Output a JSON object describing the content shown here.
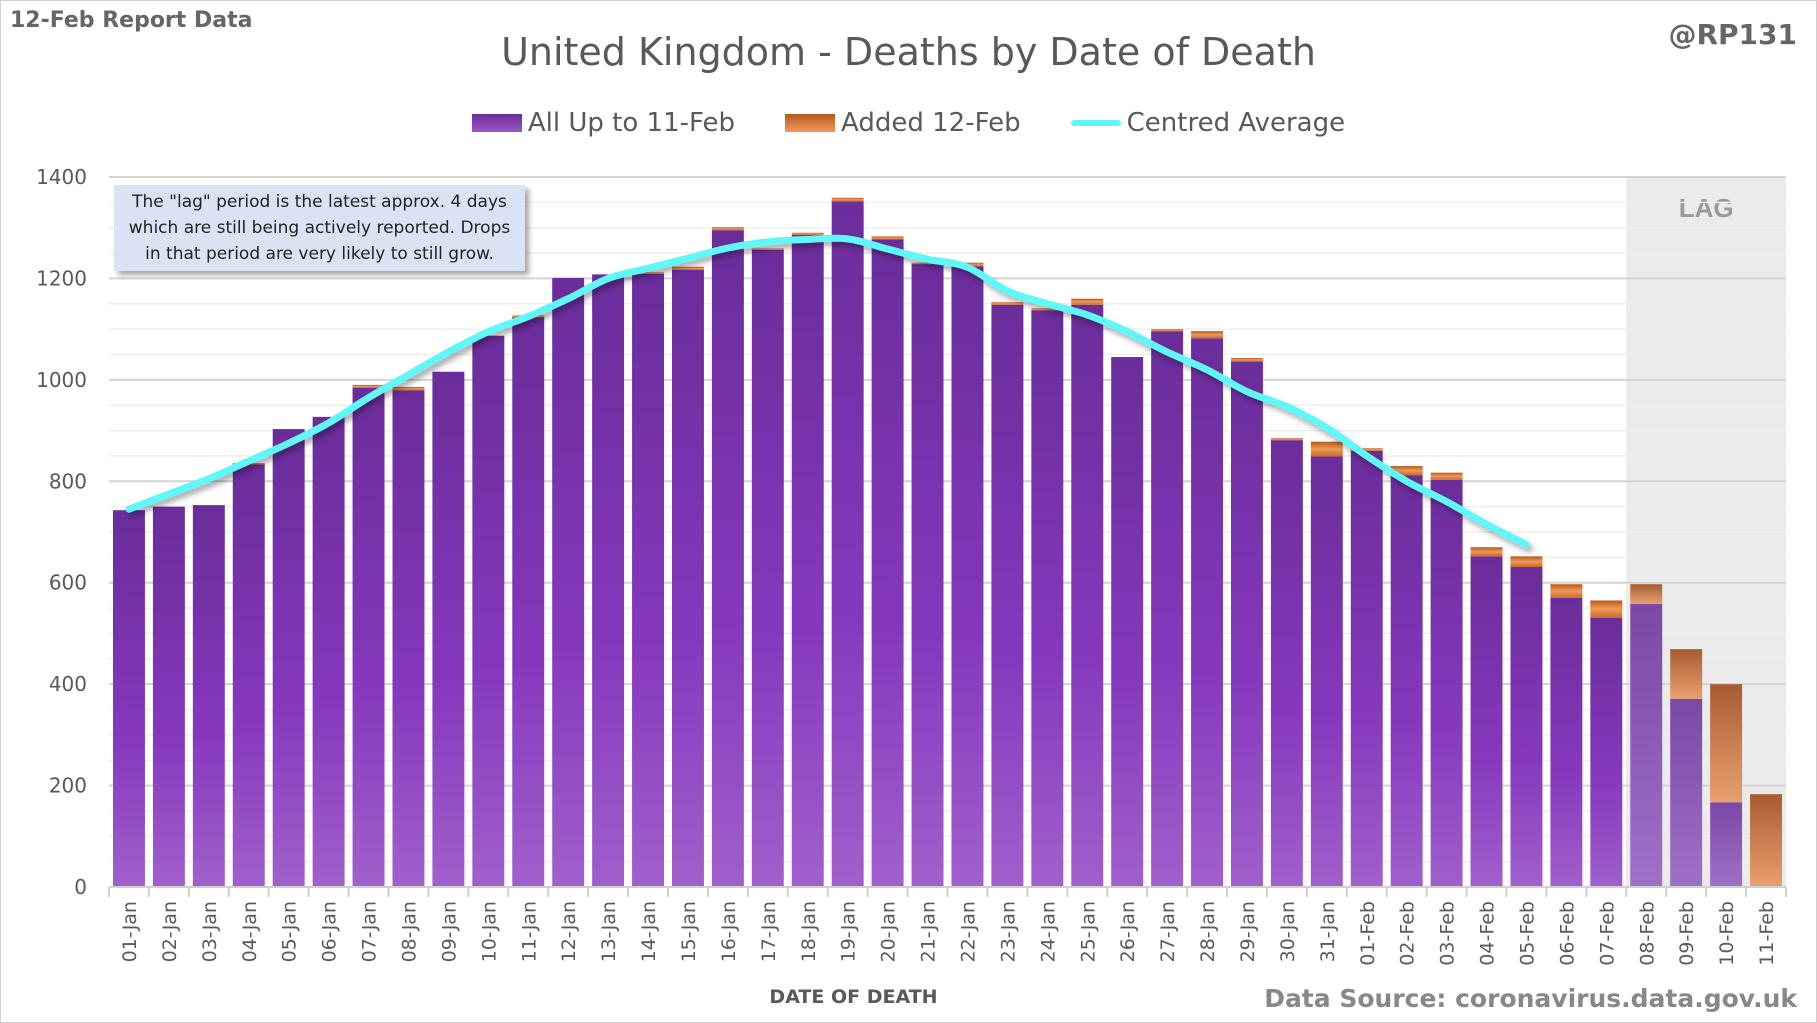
{
  "header": {
    "report_label": "12-Feb Report Data",
    "handle": "@RP131"
  },
  "footer": {
    "source": "Data Source: coronavirus.data.gov.uk"
  },
  "annotation": {
    "lines": [
      "The \"lag\" period is the latest approx. 4 days",
      "which are still being actively reported.  Drops",
      "in that period are very likely to still grow."
    ]
  },
  "colors": {
    "all_up_to": "#7a33b0",
    "added": "#e07b39",
    "average": "#5ff7f7",
    "lag_shade": "#ebebeb"
  },
  "chart_data": {
    "type": "bar",
    "stacked": true,
    "title": "United Kingdom - Deaths by Date of Death",
    "xlabel": "DATE OF DEATH",
    "ylabel": "",
    "ylim": [
      0,
      1400
    ],
    "yticks": [
      0,
      200,
      400,
      600,
      800,
      1000,
      1200,
      1400
    ],
    "grid": true,
    "legend_placement": "top",
    "lag_label": "LAG",
    "lag_start": "08-Feb",
    "categories": [
      "01-Jan",
      "02-Jan",
      "03-Jan",
      "04-Jan",
      "05-Jan",
      "06-Jan",
      "07-Jan",
      "08-Jan",
      "09-Jan",
      "10-Jan",
      "11-Jan",
      "12-Jan",
      "13-Jan",
      "14-Jan",
      "15-Jan",
      "16-Jan",
      "17-Jan",
      "18-Jan",
      "19-Jan",
      "20-Jan",
      "21-Jan",
      "22-Jan",
      "23-Jan",
      "24-Jan",
      "25-Jan",
      "26-Jan",
      "27-Jan",
      "28-Jan",
      "29-Jan",
      "30-Jan",
      "31-Jan",
      "01-Feb",
      "02-Feb",
      "03-Feb",
      "04-Feb",
      "05-Feb",
      "06-Feb",
      "07-Feb",
      "08-Feb",
      "09-Feb",
      "10-Feb",
      "11-Feb"
    ],
    "series": [
      {
        "name": "All Up to 11-Feb",
        "kind": "bar",
        "values": [
          743,
          750,
          753,
          834,
          903,
          927,
          984,
          979,
          1016,
          1087,
          1123,
          1201,
          1208,
          1209,
          1217,
          1295,
          1257,
          1286,
          1352,
          1277,
          1229,
          1224,
          1148,
          1137,
          1148,
          1045,
          1096,
          1082,
          1036,
          881,
          849,
          860,
          812,
          803,
          652,
          631,
          570,
          531,
          558,
          371,
          167,
          0
        ]
      },
      {
        "name": "Added 12-Feb",
        "kind": "bar",
        "values": [
          0,
          0,
          0,
          2,
          0,
          0,
          6,
          7,
          0,
          0,
          4,
          0,
          0,
          3,
          6,
          6,
          2,
          4,
          7,
          6,
          2,
          7,
          5,
          4,
          12,
          0,
          4,
          14,
          7,
          4,
          29,
          5,
          18,
          14,
          18,
          21,
          27,
          34,
          39,
          98,
          233,
          183
        ]
      },
      {
        "name": "Centred Average",
        "kind": "line",
        "values": [
          745,
          775,
          805,
          840,
          875,
          915,
          965,
          1010,
          1055,
          1095,
          1125,
          1160,
          1200,
          1220,
          1240,
          1260,
          1272,
          1277,
          1278,
          1258,
          1238,
          1222,
          1175,
          1150,
          1128,
          1095,
          1055,
          1020,
          977,
          947,
          905,
          850,
          800,
          760,
          715,
          675,
          null,
          null,
          null,
          null,
          null,
          null
        ]
      }
    ]
  }
}
